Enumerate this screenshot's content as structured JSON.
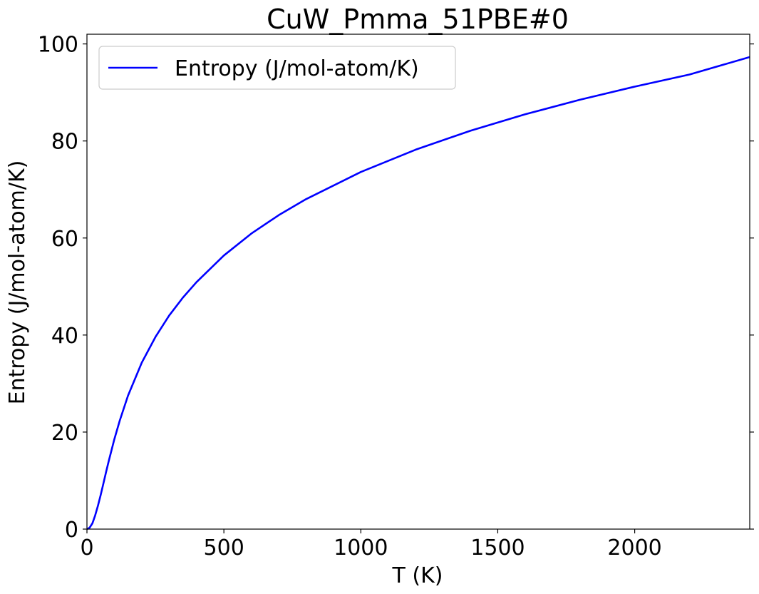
{
  "chart_data": {
    "type": "line",
    "title": "CuW_Pmma_51PBE#0",
    "xlabel": "T (K)",
    "ylabel": "Entropy (J/mol-atom/K)",
    "xlim": [
      0,
      2420
    ],
    "ylim": [
      0,
      102
    ],
    "xticks": [
      0,
      500,
      1000,
      1500,
      2000
    ],
    "xtick_labels": [
      "0",
      "500",
      "1000",
      "1500",
      "2000"
    ],
    "yticks": [
      0,
      20,
      40,
      60,
      80,
      100
    ],
    "ytick_labels": [
      "0",
      "20",
      "40",
      "60",
      "80",
      "100"
    ],
    "grid": false,
    "legend_position": "top-left",
    "series": [
      {
        "name": "Entropy (J/mol-atom/K)",
        "color": "#0000ff",
        "x": [
          0,
          10,
          20,
          30,
          40,
          50,
          60,
          70,
          80,
          100,
          120,
          150,
          200,
          250,
          300,
          350,
          400,
          500,
          600,
          700,
          800,
          1000,
          1200,
          1400,
          1600,
          1800,
          2000,
          2200,
          2420
        ],
        "y": [
          0,
          0.3,
          1.2,
          2.8,
          4.8,
          7.0,
          9.4,
          11.8,
          14.1,
          18.5,
          22.4,
          27.5,
          34.3,
          39.6,
          44.0,
          47.7,
          50.9,
          56.4,
          60.9,
          64.7,
          68.0,
          73.6,
          78.2,
          82.1,
          85.5,
          88.5,
          91.2,
          93.7,
          97.3
        ]
      }
    ]
  }
}
